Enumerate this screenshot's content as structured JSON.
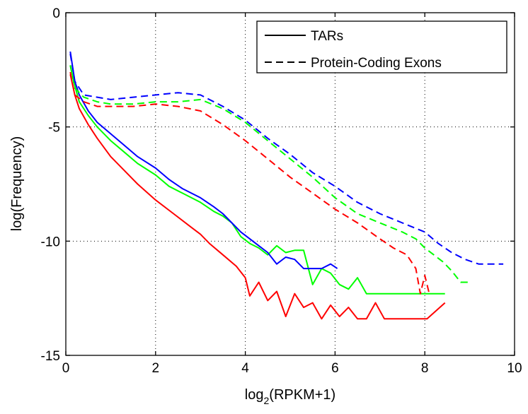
{
  "chart_data": {
    "type": "line",
    "title": "",
    "xlabel": {
      "text": "log",
      "sub": "2",
      "suffix": "(RPKM+1)"
    },
    "ylabel": "log(Frequency)",
    "xlim": [
      0,
      10
    ],
    "ylim": [
      -15,
      0
    ],
    "xticks": [
      0,
      2,
      4,
      6,
      8,
      10
    ],
    "yticks": [
      0,
      -5,
      -10,
      -15
    ],
    "grid": true,
    "legend": {
      "placement": "top-right",
      "entries": [
        {
          "label": "TARs",
          "style": "solid"
        },
        {
          "label": "Protein-Coding Exons",
          "style": "dashed"
        }
      ]
    },
    "series": [
      {
        "group": "TARs",
        "color": "#ff0000",
        "style": "solid",
        "x": [
          0.1,
          0.2,
          0.3,
          0.5,
          0.7,
          1.0,
          1.3,
          1.6,
          2.0,
          2.4,
          2.8,
          3.0,
          3.2,
          3.5,
          3.8,
          4.0,
          4.1,
          4.3,
          4.5,
          4.7,
          4.9,
          5.1,
          5.3,
          5.5,
          5.7,
          5.9,
          6.1,
          6.3,
          6.5,
          6.7,
          6.9,
          7.1,
          7.3,
          7.5,
          7.7,
          7.9,
          8.05,
          8.45
        ],
        "y": [
          -2.7,
          -3.6,
          -4.2,
          -4.9,
          -5.5,
          -6.3,
          -6.9,
          -7.5,
          -8.2,
          -8.8,
          -9.4,
          -9.7,
          -10.1,
          -10.6,
          -11.1,
          -11.6,
          -12.4,
          -11.8,
          -12.6,
          -12.2,
          -13.3,
          -12.3,
          -12.9,
          -12.7,
          -13.4,
          -12.8,
          -13.3,
          -12.9,
          -13.4,
          -13.4,
          -12.7,
          -13.4,
          -13.4,
          -13.4,
          -13.4,
          -13.4,
          -13.4,
          -12.7
        ]
      },
      {
        "group": "TARs",
        "color": "#00ff00",
        "style": "solid",
        "x": [
          0.1,
          0.2,
          0.3,
          0.5,
          0.7,
          1.0,
          1.3,
          1.6,
          2.0,
          2.3,
          2.6,
          3.0,
          3.3,
          3.5,
          3.7,
          3.9,
          4.1,
          4.3,
          4.5,
          4.7,
          4.9,
          5.1,
          5.3,
          5.5,
          5.7,
          5.9,
          6.1,
          6.3,
          6.5,
          6.7,
          7.0,
          7.5,
          8.0,
          8.45
        ],
        "y": [
          -2.3,
          -3.2,
          -3.9,
          -4.5,
          -5.0,
          -5.6,
          -6.1,
          -6.6,
          -7.1,
          -7.6,
          -7.9,
          -8.3,
          -8.7,
          -8.9,
          -9.2,
          -9.8,
          -10.1,
          -10.3,
          -10.6,
          -10.2,
          -10.5,
          -10.4,
          -10.4,
          -11.9,
          -11.2,
          -11.4,
          -11.9,
          -12.1,
          -11.6,
          -12.3,
          -12.3,
          -12.3,
          -12.3,
          -12.3
        ]
      },
      {
        "group": "TARs",
        "color": "#0000ff",
        "style": "solid",
        "x": [
          0.1,
          0.2,
          0.3,
          0.5,
          0.7,
          1.0,
          1.3,
          1.6,
          2.0,
          2.3,
          2.6,
          3.0,
          3.3,
          3.5,
          3.7,
          3.9,
          4.1,
          4.3,
          4.5,
          4.7,
          4.9,
          5.1,
          5.3,
          5.5,
          5.7,
          5.9,
          6.05
        ],
        "y": [
          -1.7,
          -3.0,
          -3.6,
          -4.3,
          -4.8,
          -5.3,
          -5.8,
          -6.3,
          -6.8,
          -7.3,
          -7.7,
          -8.1,
          -8.5,
          -8.8,
          -9.2,
          -9.6,
          -9.9,
          -10.2,
          -10.5,
          -11.0,
          -10.7,
          -10.8,
          -11.2,
          -11.2,
          -11.2,
          -11.0,
          -11.2
        ]
      },
      {
        "group": "Protein-Coding Exons",
        "color": "#ff0000",
        "style": "dashed",
        "x": [
          0.1,
          0.2,
          0.4,
          0.7,
          1.0,
          1.5,
          2.0,
          2.5,
          3.0,
          3.5,
          4.0,
          4.5,
          5.0,
          5.5,
          6.0,
          6.5,
          7.0,
          7.3,
          7.6,
          7.8,
          7.9,
          8.0,
          8.1
        ],
        "y": [
          -2.6,
          -3.6,
          -3.9,
          -4.1,
          -4.1,
          -4.1,
          -4.0,
          -4.1,
          -4.3,
          -4.9,
          -5.6,
          -6.4,
          -7.2,
          -7.9,
          -8.6,
          -9.2,
          -9.9,
          -10.3,
          -10.6,
          -11.2,
          -12.3,
          -11.5,
          -12.3
        ]
      },
      {
        "group": "Protein-Coding Exons",
        "color": "#00ff00",
        "style": "dashed",
        "x": [
          0.1,
          0.2,
          0.4,
          0.7,
          1.0,
          1.5,
          2.0,
          2.5,
          3.0,
          3.5,
          4.0,
          4.5,
          5.0,
          5.5,
          6.0,
          6.5,
          7.0,
          7.5,
          7.8,
          8.0,
          8.2,
          8.4,
          8.6,
          8.8,
          9.0
        ],
        "y": [
          -2.3,
          -3.3,
          -3.7,
          -3.9,
          -4.0,
          -4.0,
          -3.9,
          -3.9,
          -3.8,
          -4.2,
          -4.8,
          -5.6,
          -6.4,
          -7.2,
          -8.1,
          -8.8,
          -9.2,
          -9.6,
          -9.9,
          -10.3,
          -10.6,
          -10.9,
          -11.3,
          -11.8,
          -11.8
        ]
      },
      {
        "group": "Protein-Coding Exons",
        "color": "#0000ff",
        "style": "dashed",
        "x": [
          0.1,
          0.2,
          0.4,
          0.7,
          1.0,
          1.5,
          2.0,
          2.5,
          3.0,
          3.5,
          4.0,
          4.5,
          5.0,
          5.5,
          6.0,
          6.5,
          7.0,
          7.5,
          8.0,
          8.3,
          8.6,
          8.9,
          9.2,
          9.5,
          9.75
        ],
        "y": [
          -1.8,
          -3.0,
          -3.6,
          -3.7,
          -3.8,
          -3.7,
          -3.6,
          -3.5,
          -3.6,
          -4.1,
          -4.7,
          -5.5,
          -6.2,
          -7.0,
          -7.6,
          -8.3,
          -8.8,
          -9.2,
          -9.6,
          -10.1,
          -10.5,
          -10.8,
          -11.0,
          -11.0,
          -11.0
        ]
      }
    ]
  }
}
